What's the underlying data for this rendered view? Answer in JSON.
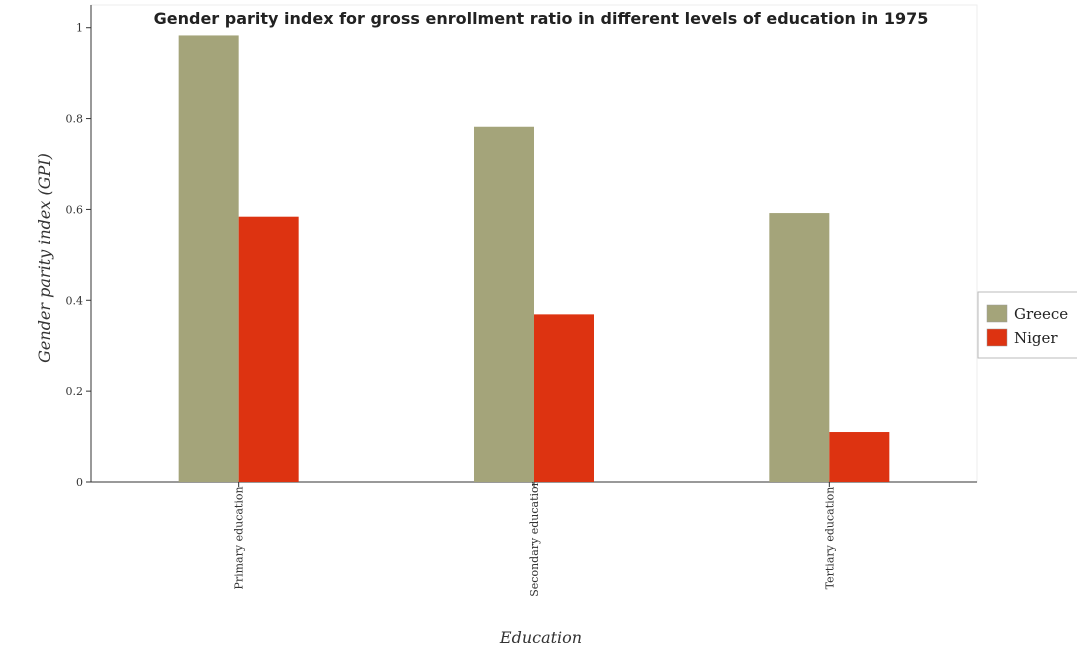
{
  "chart_data": {
    "type": "bar",
    "title": "Gender parity index for gross enrollment ratio in different levels of education in 1975",
    "xlabel": "Education",
    "ylabel": "Gender parity index (GPI)",
    "categories": [
      "Primary education",
      "Secondary education",
      "Tertiary education"
    ],
    "series": [
      {
        "name": "Greece",
        "color": "#a4a47a",
        "values": [
          0.983,
          0.782,
          0.592
        ]
      },
      {
        "name": "Niger",
        "color": "#dd3311",
        "values": [
          0.584,
          0.369,
          0.11
        ]
      }
    ],
    "ylim": [
      0,
      1.05
    ],
    "yticks": [
      0,
      0.2,
      0.4,
      0.6,
      0.8,
      1
    ],
    "ytick_labels": [
      "0",
      "0.2",
      "0.4",
      "0.6",
      "0.8",
      "1"
    ],
    "grid": false,
    "legend_position": "right"
  }
}
